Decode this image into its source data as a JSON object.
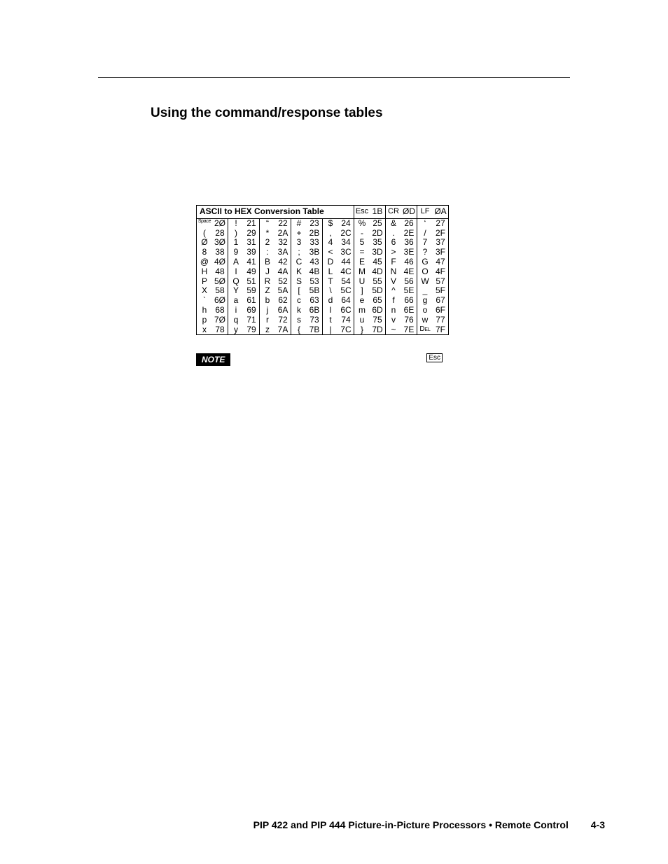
{
  "heading": "Using the command/response tables",
  "table": {
    "title": "ASCII to HEX  Conversion Table",
    "header_pairs": [
      {
        "char": "Esc",
        "hex": "1B"
      },
      {
        "char": "CR",
        "hex": "ØD"
      },
      {
        "char": "LF",
        "hex": "ØA"
      }
    ],
    "rows": [
      [
        {
          "char": "Space",
          "hex": "2Ø",
          "charClass": "space-label"
        },
        {
          "char": "!",
          "hex": "21"
        },
        {
          "char": "“",
          "hex": "22"
        },
        {
          "char": "#",
          "hex": "23"
        },
        {
          "char": "$",
          "hex": "24"
        },
        {
          "char": "%",
          "hex": "25"
        },
        {
          "char": "&",
          "hex": "26"
        },
        {
          "char": "‘",
          "hex": "27"
        }
      ],
      [
        {
          "char": "(",
          "hex": "28"
        },
        {
          "char": ")",
          "hex": "29"
        },
        {
          "char": "*",
          "hex": "2A"
        },
        {
          "char": "+",
          "hex": "2B"
        },
        {
          "char": ",",
          "hex": "2C"
        },
        {
          "char": "-",
          "hex": "2D"
        },
        {
          "char": ".",
          "hex": "2E"
        },
        {
          "char": "/",
          "hex": "2F"
        }
      ],
      [
        {
          "char": "Ø",
          "hex": "3Ø"
        },
        {
          "char": "1",
          "hex": "31"
        },
        {
          "char": "2",
          "hex": "32"
        },
        {
          "char": "3",
          "hex": "33"
        },
        {
          "char": "4",
          "hex": "34"
        },
        {
          "char": "5",
          "hex": "35"
        },
        {
          "char": "6",
          "hex": "36"
        },
        {
          "char": "7",
          "hex": "37"
        }
      ],
      [
        {
          "char": "8",
          "hex": "38"
        },
        {
          "char": "9",
          "hex": "39"
        },
        {
          "char": ":",
          "hex": "3A"
        },
        {
          "char": ";",
          "hex": "3B"
        },
        {
          "char": "<",
          "hex": "3C"
        },
        {
          "char": "=",
          "hex": "3D"
        },
        {
          "char": ">",
          "hex": "3E"
        },
        {
          "char": "?",
          "hex": "3F"
        }
      ],
      [
        {
          "char": "@",
          "hex": "4Ø"
        },
        {
          "char": "A",
          "hex": "41"
        },
        {
          "char": "B",
          "hex": "42"
        },
        {
          "char": "C",
          "hex": "43"
        },
        {
          "char": "D",
          "hex": "44"
        },
        {
          "char": "E",
          "hex": "45"
        },
        {
          "char": "F",
          "hex": "46"
        },
        {
          "char": "G",
          "hex": "47"
        }
      ],
      [
        {
          "char": "H",
          "hex": "48"
        },
        {
          "char": "I",
          "hex": "49"
        },
        {
          "char": "J",
          "hex": "4A"
        },
        {
          "char": "K",
          "hex": "4B"
        },
        {
          "char": "L",
          "hex": "4C"
        },
        {
          "char": "M",
          "hex": "4D"
        },
        {
          "char": "N",
          "hex": "4E"
        },
        {
          "char": "O",
          "hex": "4F"
        }
      ],
      [
        {
          "char": "P",
          "hex": "5Ø"
        },
        {
          "char": "Q",
          "hex": "51"
        },
        {
          "char": "R",
          "hex": "52"
        },
        {
          "char": "S",
          "hex": "53"
        },
        {
          "char": "T",
          "hex": "54"
        },
        {
          "char": "U",
          "hex": "55"
        },
        {
          "char": "V",
          "hex": "56"
        },
        {
          "char": "W",
          "hex": "57"
        }
      ],
      [
        {
          "char": "X",
          "hex": "58"
        },
        {
          "char": "Y",
          "hex": "59"
        },
        {
          "char": "Z",
          "hex": "5A"
        },
        {
          "char": "[",
          "hex": "5B"
        },
        {
          "char": "\\",
          "hex": "5C"
        },
        {
          "char": "]",
          "hex": "5D"
        },
        {
          "char": "^",
          "hex": "5E"
        },
        {
          "char": "_",
          "hex": "5F"
        }
      ],
      [
        {
          "char": "`",
          "hex": "6Ø"
        },
        {
          "char": "a",
          "hex": "61"
        },
        {
          "char": "b",
          "hex": "62"
        },
        {
          "char": "c",
          "hex": "63"
        },
        {
          "char": "d",
          "hex": "64"
        },
        {
          "char": "e",
          "hex": "65"
        },
        {
          "char": "f",
          "hex": "66"
        },
        {
          "char": "g",
          "hex": "67"
        }
      ],
      [
        {
          "char": "h",
          "hex": "68"
        },
        {
          "char": "i",
          "hex": "69"
        },
        {
          "char": "j",
          "hex": "6A"
        },
        {
          "char": "k",
          "hex": "6B"
        },
        {
          "char": "l",
          "hex": "6C"
        },
        {
          "char": "m",
          "hex": "6D"
        },
        {
          "char": "n",
          "hex": "6E"
        },
        {
          "char": "o",
          "hex": "6F"
        }
      ],
      [
        {
          "char": "p",
          "hex": "7Ø"
        },
        {
          "char": "q",
          "hex": "71"
        },
        {
          "char": "r",
          "hex": "72"
        },
        {
          "char": "s",
          "hex": "73"
        },
        {
          "char": "t",
          "hex": "74"
        },
        {
          "char": "u",
          "hex": "75"
        },
        {
          "char": "v",
          "hex": "76"
        },
        {
          "char": "w",
          "hex": "77"
        }
      ],
      [
        {
          "char": "x",
          "hex": "78"
        },
        {
          "char": "y",
          "hex": "79"
        },
        {
          "char": "z",
          "hex": "7A"
        },
        {
          "char": "{",
          "hex": "7B"
        },
        {
          "char": "|",
          "hex": "7C"
        },
        {
          "char": "}",
          "hex": "7D"
        },
        {
          "char": "~",
          "hex": "7E"
        },
        {
          "char": "Del",
          "hex": "7F",
          "charClass": "smallcaps"
        }
      ]
    ]
  },
  "note": {
    "badge": "NOTE",
    "esc": "Esc"
  },
  "footer": {
    "text": "PIP 422 and PIP 444 Picture-in-Picture Processors • Remote Control",
    "page": "4-3"
  }
}
